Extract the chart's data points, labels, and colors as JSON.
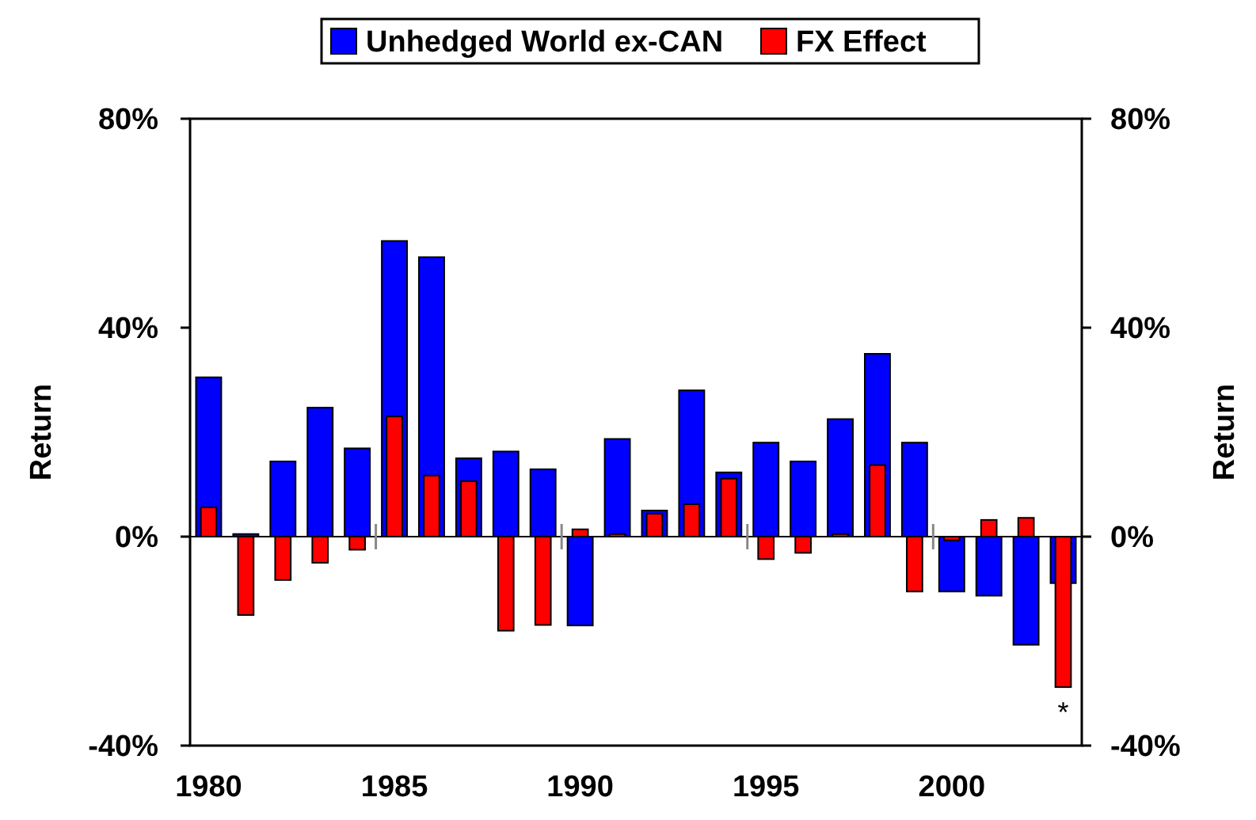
{
  "chart_data": {
    "type": "bar",
    "categories": [
      "1980",
      null,
      null,
      null,
      null,
      "1985",
      null,
      null,
      null,
      null,
      "1990",
      null,
      null,
      null,
      null,
      "1995",
      null,
      null,
      null,
      null,
      "2000",
      null,
      null,
      null
    ],
    "series": [
      {
        "name": "Unhedged World ex-CAN",
        "color": "#0000ff",
        "values": [
          30.5,
          0.5,
          14.4,
          24.7,
          16.9,
          56.6,
          53.5,
          15,
          16.3,
          12.9,
          -17,
          18.7,
          5,
          28,
          12.3,
          18,
          14.4,
          22.5,
          35,
          18,
          -10.5,
          -11.3,
          -20.7,
          -8.9
        ]
      },
      {
        "name": "FX Effect",
        "color": "#ff0000",
        "values": [
          5.6,
          -15,
          -8.3,
          -5,
          -2.5,
          23,
          11.7,
          10.6,
          -18,
          -16.9,
          1.4,
          0.5,
          4.4,
          6.2,
          11.1,
          -4.3,
          -3.1,
          0.5,
          13.7,
          -10.5,
          -0.7,
          3.2,
          3.6,
          -28.8
        ]
      }
    ],
    "ylabel": "Return",
    "y2label": "Return",
    "ylim": [
      -40,
      80
    ],
    "yticks": [
      {
        "value": -40,
        "label": "-40%"
      },
      {
        "value": 0,
        "label": "0%"
      },
      {
        "value": 40,
        "label": "40%"
      },
      {
        "value": 80,
        "label": "80%"
      }
    ],
    "y2lim": [
      -40,
      80
    ],
    "y2ticks": [
      {
        "value": -40,
        "label": "-40%"
      },
      {
        "value": 0,
        "label": "0%"
      },
      {
        "value": 40,
        "label": "40%"
      },
      {
        "value": 80,
        "label": "80%"
      }
    ],
    "annotations": [
      {
        "text": "*",
        "y": -28.8
      }
    ],
    "legend": "top"
  }
}
